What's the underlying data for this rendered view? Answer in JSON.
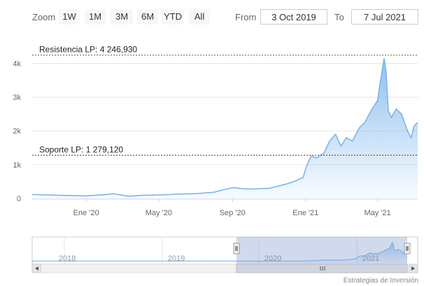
{
  "range_selector": {
    "zoom_label": "Zoom",
    "buttons": [
      "1W",
      "1M",
      "3M",
      "6M",
      "YTD",
      "All"
    ],
    "from_label": "From",
    "from_value": "3 Oct 2019",
    "to_label": "To",
    "to_value": "7 Jul 2021"
  },
  "credits": "Estrategias de Inversión",
  "chart_data": {
    "type": "area",
    "y_ticks": [
      {
        "value": 0,
        "label": "0"
      },
      {
        "value": 1000,
        "label": "1k"
      },
      {
        "value": 2000,
        "label": "2k"
      },
      {
        "value": 3000,
        "label": "3k"
      },
      {
        "value": 4000,
        "label": "4k"
      }
    ],
    "ylim": [
      0,
      4300
    ],
    "xlim": [
      "2019-10-03",
      "2021-07-07"
    ],
    "x_ticks": [
      {
        "date": "2020-01-01",
        "label": "Ene '20"
      },
      {
        "date": "2020-05-01",
        "label": "May '20"
      },
      {
        "date": "2020-09-01",
        "label": "Sep '20"
      },
      {
        "date": "2021-01-01",
        "label": "Ene '21"
      },
      {
        "date": "2021-05-01",
        "label": "May '21"
      }
    ],
    "reference_lines": [
      {
        "value": 4246.93,
        "label": "Resistencia LP: 4 246,930",
        "color": "#2e7d32"
      },
      {
        "value": 1279.12,
        "label": "Soporte LP: 1 279,120",
        "color": "#8b1a1a"
      }
    ],
    "series": [
      {
        "color": "#7cb5ec",
        "points": [
          [
            "2019-10-03",
            115
          ],
          [
            "2019-11-01",
            100
          ],
          [
            "2019-12-01",
            85
          ],
          [
            "2020-01-01",
            75
          ],
          [
            "2020-02-01",
            110
          ],
          [
            "2020-02-15",
            140
          ],
          [
            "2020-03-12",
            60
          ],
          [
            "2020-04-01",
            90
          ],
          [
            "2020-05-01",
            100
          ],
          [
            "2020-06-01",
            125
          ],
          [
            "2020-07-01",
            140
          ],
          [
            "2020-08-01",
            180
          ],
          [
            "2020-08-20",
            270
          ],
          [
            "2020-09-03",
            320
          ],
          [
            "2020-09-20",
            280
          ],
          [
            "2020-10-10",
            280
          ],
          [
            "2020-11-01",
            300
          ],
          [
            "2020-11-25",
            400
          ],
          [
            "2020-12-10",
            480
          ],
          [
            "2020-12-28",
            620
          ],
          [
            "2021-01-02",
            920
          ],
          [
            "2021-01-10",
            1250
          ],
          [
            "2021-01-20",
            1200
          ],
          [
            "2021-02-01",
            1350
          ],
          [
            "2021-02-10",
            1700
          ],
          [
            "2021-02-20",
            1900
          ],
          [
            "2021-03-01",
            1550
          ],
          [
            "2021-03-10",
            1800
          ],
          [
            "2021-03-20",
            1700
          ],
          [
            "2021-04-01",
            2100
          ],
          [
            "2021-04-10",
            2250
          ],
          [
            "2021-04-20",
            2600
          ],
          [
            "2021-05-01",
            2900
          ],
          [
            "2021-05-06",
            3500
          ],
          [
            "2021-05-12",
            4150
          ],
          [
            "2021-05-15",
            3800
          ],
          [
            "2021-05-19",
            2600
          ],
          [
            "2021-05-24",
            2400
          ],
          [
            "2021-06-01",
            2650
          ],
          [
            "2021-06-10",
            2500
          ],
          [
            "2021-06-20",
            2000
          ],
          [
            "2021-06-26",
            1800
          ],
          [
            "2021-07-01",
            2150
          ],
          [
            "2021-07-07",
            2250
          ]
        ]
      }
    ],
    "navigator": {
      "years": [
        "2018",
        "2019",
        "2020",
        "2021"
      ]
    }
  }
}
